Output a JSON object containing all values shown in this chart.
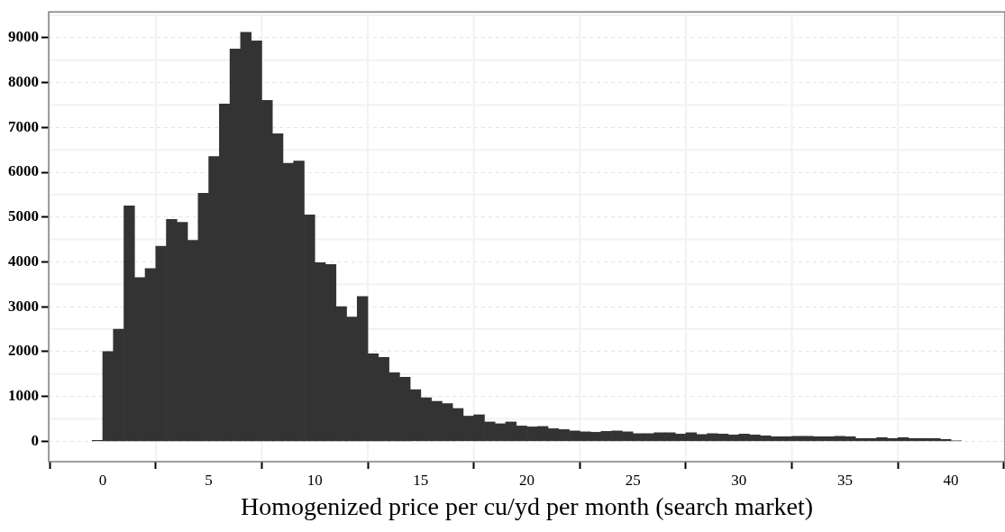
{
  "chart_data": {
    "type": "histogram",
    "xlabel": "Homogenized price per cu/yd per month (search market)",
    "bins": [
      -0.5,
      0,
      0.5,
      1,
      1.5,
      2,
      2.5,
      3,
      3.5,
      4,
      4.5,
      5,
      5.5,
      6,
      6.5,
      7,
      7.5,
      8,
      8.5,
      9,
      9.5,
      10,
      10.5,
      11,
      11.5,
      12,
      12.5,
      13,
      13.5,
      14,
      14.5,
      15,
      15.5,
      16,
      16.5,
      17,
      17.5,
      18,
      18.5,
      19,
      19.5,
      20,
      20.5,
      21,
      21.5,
      22,
      22.5,
      23,
      23.5,
      24,
      24.5,
      25,
      25.5,
      26,
      26.5,
      27,
      27.5,
      28,
      28.5,
      29,
      29.5,
      30,
      30.5,
      31,
      31.5,
      32,
      32.5,
      33,
      33.5,
      34,
      34.5,
      35,
      35.5,
      36,
      36.5,
      37,
      37.5,
      38,
      38.5,
      39,
      39.5,
      40,
      40.5
    ],
    "values": [
      20,
      2000,
      2500,
      5250,
      3650,
      3850,
      4350,
      4950,
      4880,
      4480,
      5530,
      6350,
      7520,
      8750,
      9120,
      8930,
      7600,
      6860,
      6200,
      6250,
      5050,
      3980,
      3940,
      3000,
      2770,
      3230,
      1950,
      1870,
      1530,
      1430,
      1150,
      970,
      890,
      840,
      730,
      560,
      590,
      430,
      390,
      430,
      340,
      320,
      330,
      280,
      260,
      230,
      210,
      200,
      220,
      230,
      210,
      170,
      170,
      190,
      190,
      160,
      190,
      150,
      170,
      160,
      140,
      160,
      140,
      120,
      100,
      100,
      110,
      110,
      100,
      100,
      110,
      100,
      60,
      60,
      80,
      60,
      80,
      60,
      60,
      60,
      40,
      10
    ],
    "color": "#333333",
    "xlim": [
      -2.55,
      42.55
    ],
    "xticks": [
      0,
      5,
      10,
      15,
      20,
      25,
      30,
      35,
      40
    ],
    "ylim": [
      -456,
      9576
    ],
    "yticks": [
      0,
      1000,
      2000,
      3000,
      4000,
      5000,
      6000,
      7000,
      8000,
      9000
    ],
    "grid": true
  }
}
